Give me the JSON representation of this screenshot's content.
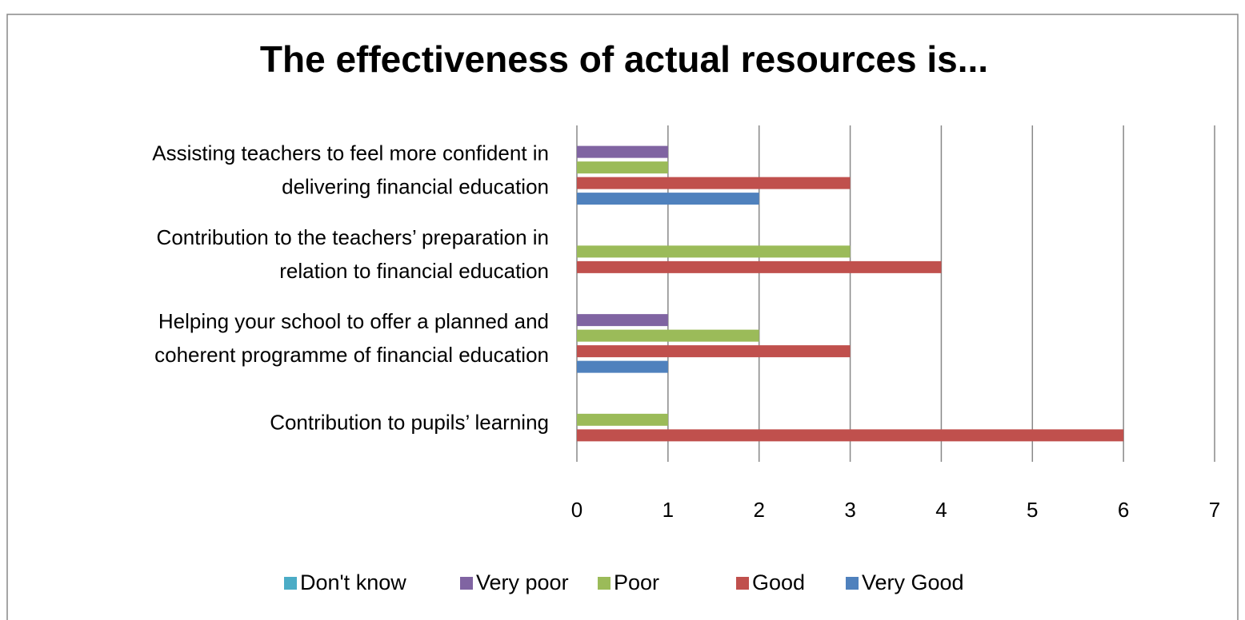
{
  "chart_data": {
    "type": "bar",
    "orientation": "horizontal",
    "title": "The effectiveness of actual resources is...",
    "categories": [
      [
        "Assisting teachers to feel more confident in",
        "delivering financial education"
      ],
      [
        "Contribution to the teachers’ preparation in",
        "relation to financial education"
      ],
      [
        "Helping your school to offer a planned and",
        "coherent programme of financial education"
      ],
      [
        "Contribution to pupils’ learning"
      ]
    ],
    "series": [
      {
        "name": "Don't know",
        "color": "#4bacc6",
        "values": [
          0,
          0,
          0,
          0
        ]
      },
      {
        "name": "Very poor",
        "color": "#8064a2",
        "values": [
          1,
          0,
          1,
          0
        ]
      },
      {
        "name": "Poor",
        "color": "#9bbb59",
        "values": [
          1,
          3,
          2,
          1
        ]
      },
      {
        "name": "Good",
        "color": "#c0504d",
        "values": [
          3,
          4,
          3,
          6
        ]
      },
      {
        "name": "Very Good",
        "color": "#4f81bd",
        "values": [
          2,
          0,
          1,
          0
        ]
      }
    ],
    "xlim": [
      0,
      7
    ],
    "xticks": [
      0,
      1,
      2,
      3,
      4,
      5,
      6,
      7
    ],
    "grid": true,
    "legend": "bottom"
  }
}
